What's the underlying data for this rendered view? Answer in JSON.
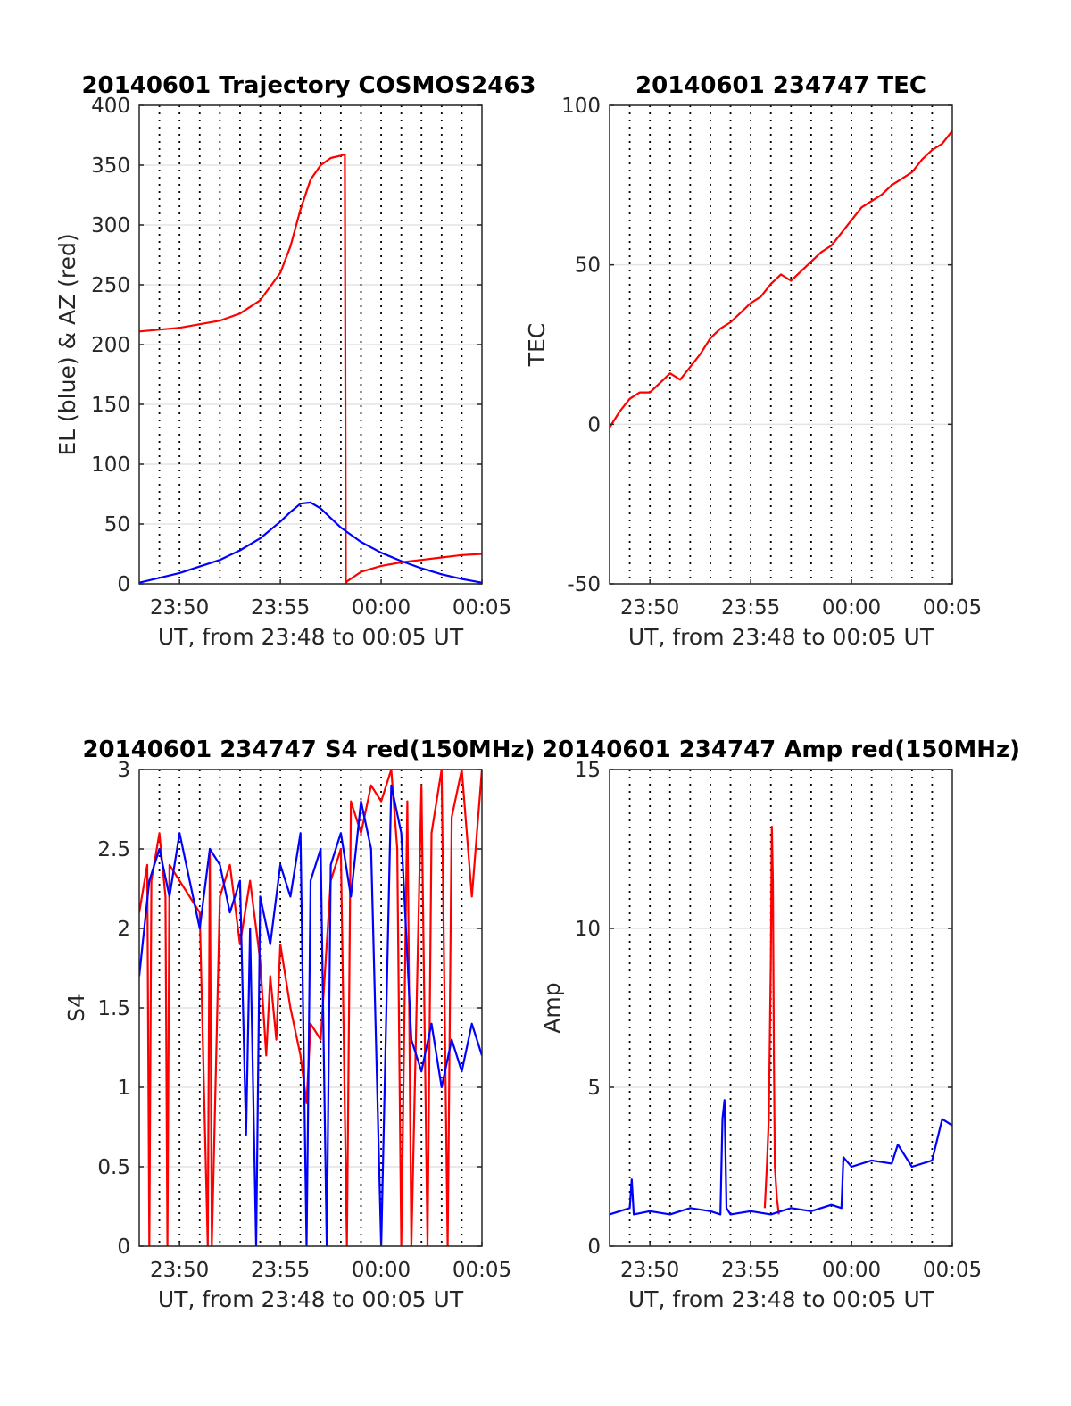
{
  "chart_data": [
    {
      "type": "line",
      "title": "20140601 Trajectory COSMOS2463",
      "xlabel": "UT, from 23:48 to 00:05 UT",
      "ylabel": "EL (blue) & AZ (red)",
      "xlim": [
        0,
        17
      ],
      "ylim": [
        0,
        400
      ],
      "x_ticks": [
        {
          "pos": 2,
          "label": "23:50"
        },
        {
          "pos": 7,
          "label": "23:55"
        },
        {
          "pos": 12,
          "label": "00:00"
        },
        {
          "pos": 17,
          "label": "00:05"
        }
      ],
      "y_ticks": [
        0,
        50,
        100,
        150,
        200,
        250,
        300,
        350,
        400
      ],
      "vgrid_dotted": [
        1,
        2,
        3,
        4,
        5,
        6,
        7,
        8,
        9,
        10,
        11,
        12,
        13,
        14,
        15,
        16
      ],
      "grid": true,
      "series": [
        {
          "color": "#ff0000",
          "x": [
            0,
            2,
            4,
            5,
            6,
            7,
            7.5,
            8,
            8.5,
            9,
            9.5,
            10,
            10.2,
            10.25,
            10.3,
            11,
            12,
            13,
            14,
            15,
            16,
            17
          ],
          "y": [
            211,
            214,
            220,
            226,
            237,
            260,
            282,
            313,
            338,
            350,
            356,
            358,
            359,
            0,
            2,
            10,
            15,
            18,
            20,
            22,
            24,
            25
          ]
        },
        {
          "color": "#0000ff",
          "x": [
            0,
            2,
            4,
            5,
            6,
            7,
            7.5,
            8,
            8.5,
            9,
            9.5,
            10,
            11,
            12,
            13,
            14,
            15,
            16,
            17
          ],
          "y": [
            1,
            9,
            20,
            28,
            38,
            52,
            60,
            67,
            68,
            63,
            55,
            47,
            35,
            26,
            19,
            13,
            8,
            4,
            1
          ]
        }
      ]
    },
    {
      "type": "line",
      "title": "20140601 234747 TEC",
      "xlabel": "UT, from 23:48 to 00:05 UT",
      "ylabel": "TEC",
      "xlim": [
        0,
        17
      ],
      "ylim": [
        -50,
        100
      ],
      "x_ticks": [
        {
          "pos": 2,
          "label": "23:50"
        },
        {
          "pos": 7,
          "label": "23:55"
        },
        {
          "pos": 12,
          "label": "00:00"
        },
        {
          "pos": 17,
          "label": "00:05"
        }
      ],
      "y_ticks": [
        -50,
        0,
        50,
        100
      ],
      "vgrid_dotted": [
        1,
        2,
        3,
        4,
        5,
        6,
        7,
        8,
        9,
        10,
        11,
        12,
        13,
        14,
        15,
        16
      ],
      "grid": true,
      "series": [
        {
          "color": "#ff0000",
          "x": [
            0,
            0.5,
            1,
            1.5,
            2,
            2.5,
            3,
            3.5,
            4,
            4.5,
            5,
            5.5,
            6,
            6.5,
            7,
            7.5,
            8,
            8.5,
            9,
            9.5,
            10,
            10.5,
            11,
            11.5,
            12,
            12.5,
            13,
            13.5,
            14,
            14.5,
            15,
            15.5,
            16,
            16.5,
            17
          ],
          "y": [
            -1,
            4,
            8,
            10,
            10,
            13,
            16,
            14,
            18,
            22,
            27,
            30,
            32,
            35,
            38,
            40,
            44,
            47,
            45,
            48,
            51,
            54,
            56,
            60,
            64,
            68,
            70,
            72,
            75,
            77,
            79,
            83,
            86,
            88,
            92
          ]
        }
      ]
    },
    {
      "type": "line",
      "title": "20140601 234747 S4 red(150MHz)",
      "xlabel": "UT, from 23:48 to 00:05 UT",
      "ylabel": "S4",
      "xlim": [
        0,
        17
      ],
      "ylim": [
        0,
        3
      ],
      "x_ticks": [
        {
          "pos": 2,
          "label": "23:50"
        },
        {
          "pos": 7,
          "label": "23:55"
        },
        {
          "pos": 12,
          "label": "00:00"
        },
        {
          "pos": 17,
          "label": "00:05"
        }
      ],
      "y_ticks": [
        0,
        0.5,
        1,
        1.5,
        2,
        2.5,
        3
      ],
      "vgrid_dotted": [
        1,
        2,
        3,
        4,
        5,
        6,
        7,
        8,
        9,
        10,
        11,
        12,
        13,
        14,
        15,
        16
      ],
      "grid": true,
      "series": [
        {
          "color": "#ff0000",
          "x": [
            0,
            0.4,
            0.5,
            0.6,
            1,
            1.3,
            1.4,
            1.5,
            2,
            3,
            3.4,
            3.5,
            3.6,
            4,
            4.5,
            5,
            5.5,
            6,
            6.3,
            6.5,
            6.8,
            7,
            7.5,
            8,
            8.3,
            8.5,
            9,
            9.5,
            10,
            10.3,
            10.5,
            11,
            11.5,
            12,
            12.5,
            12.8,
            13,
            13.3,
            13.5,
            14,
            14.3,
            14.5,
            15,
            15.3,
            15.5,
            16,
            16.5,
            17
          ],
          "y": [
            2.1,
            2.4,
            0,
            2.3,
            2.6,
            2.2,
            0,
            2.4,
            2.3,
            2.1,
            0,
            2.5,
            0,
            2.2,
            2.4,
            1.9,
            2.3,
            1.8,
            1.2,
            1.7,
            1.3,
            1.9,
            1.5,
            1.2,
            0.9,
            1.4,
            1.3,
            2.3,
            2.5,
            0,
            2.8,
            2.6,
            2.9,
            2.8,
            3.0,
            2.5,
            0,
            2.8,
            0,
            2.9,
            0,
            2.6,
            3.0,
            0,
            2.7,
            3.0,
            2.2,
            3.0
          ]
        },
        {
          "color": "#0000ff",
          "x": [
            0,
            0.5,
            1,
            1.5,
            2,
            2.5,
            3,
            3.5,
            4,
            4.5,
            5,
            5.3,
            5.5,
            5.8,
            6,
            6.5,
            7,
            7.5,
            8,
            8.3,
            8.5,
            9,
            9.3,
            9.5,
            10,
            10.5,
            11,
            11.5,
            12,
            12.5,
            13,
            13.5,
            14,
            14.5,
            15,
            15.5,
            16,
            16.5,
            17
          ],
          "y": [
            1.7,
            2.3,
            2.5,
            2.2,
            2.6,
            2.3,
            2.0,
            2.5,
            2.4,
            2.1,
            2.3,
            0.7,
            2.0,
            0,
            2.2,
            1.9,
            2.4,
            2.2,
            2.6,
            0,
            2.3,
            2.5,
            0,
            2.4,
            2.6,
            2.2,
            2.8,
            2.5,
            0,
            2.9,
            2.6,
            1.3,
            1.1,
            1.4,
            1.0,
            1.3,
            1.1,
            1.4,
            1.2
          ]
        }
      ]
    },
    {
      "type": "line",
      "title": "20140601 234747 Amp red(150MHz)",
      "xlabel": "UT, from 23:48 to 00:05 UT",
      "ylabel": "Amp",
      "xlim": [
        0,
        17
      ],
      "ylim": [
        0,
        15
      ],
      "x_ticks": [
        {
          "pos": 2,
          "label": "23:50"
        },
        {
          "pos": 7,
          "label": "23:55"
        },
        {
          "pos": 12,
          "label": "00:00"
        },
        {
          "pos": 17,
          "label": "00:05"
        }
      ],
      "y_ticks": [
        0,
        5,
        10,
        15
      ],
      "vgrid_dotted": [
        1,
        2,
        3,
        4,
        5,
        6,
        7,
        8,
        9,
        10,
        11,
        12,
        13,
        14,
        15,
        16
      ],
      "grid": true,
      "series": [
        {
          "color": "#ff0000",
          "x": [
            7.7,
            7.8,
            7.9,
            8.0,
            8.05,
            8.1,
            8.15,
            8.2,
            8.3,
            8.4
          ],
          "y": [
            1.2,
            2.5,
            4.0,
            9.0,
            13.2,
            11.5,
            6.0,
            2.5,
            1.5,
            1.0
          ]
        },
        {
          "color": "#0000ff",
          "x": [
            0,
            1,
            1.1,
            1.2,
            2,
            3,
            4,
            5,
            5.5,
            5.6,
            5.7,
            5.8,
            6,
            7,
            8,
            9,
            10,
            11,
            11.5,
            11.6,
            12,
            13,
            14,
            14.3,
            15,
            16,
            16.5,
            17
          ],
          "y": [
            1.0,
            1.2,
            2.1,
            1.0,
            1.1,
            1.0,
            1.2,
            1.1,
            1.0,
            4.0,
            4.6,
            1.2,
            1.0,
            1.1,
            1.0,
            1.2,
            1.1,
            1.3,
            1.2,
            2.8,
            2.5,
            2.7,
            2.6,
            3.2,
            2.5,
            2.7,
            4.0,
            3.8
          ]
        }
      ]
    }
  ]
}
